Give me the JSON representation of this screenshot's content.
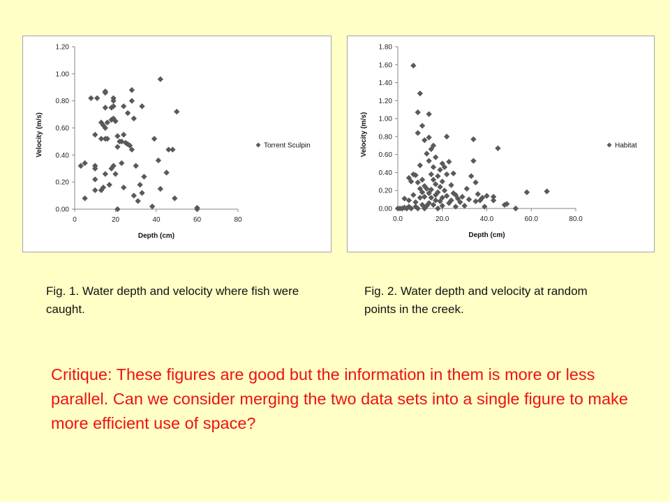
{
  "chart_data": [
    {
      "type": "scatter",
      "xlabel": "Depth (cm)",
      "ylabel": "Velocity (m/s)",
      "xlim": [
        0,
        80
      ],
      "ylim": [
        0,
        1.2
      ],
      "xticks": [
        "0",
        "20",
        "40",
        "60",
        "80"
      ],
      "yticks": [
        "0.00",
        "0.20",
        "0.40",
        "0.60",
        "0.80",
        "1.00",
        "1.20"
      ],
      "grid": false,
      "legend_position": "right",
      "marker_color": "#595959",
      "series": [
        {
          "name": "Torrent Sculpin",
          "points": [
            [
              3,
              0.32
            ],
            [
              5,
              0.34
            ],
            [
              5,
              0.08
            ],
            [
              8,
              0.82
            ],
            [
              10,
              0.55
            ],
            [
              10,
              0.32
            ],
            [
              10,
              0.3
            ],
            [
              10,
              0.22
            ],
            [
              10,
              0.14
            ],
            [
              11,
              0.82
            ],
            [
              13,
              0.64
            ],
            [
              13,
              0.52
            ],
            [
              13,
              0.14
            ],
            [
              14,
              0.16
            ],
            [
              14,
              0.62
            ],
            [
              15,
              0.86
            ],
            [
              15,
              0.87
            ],
            [
              15,
              0.6
            ],
            [
              15,
              0.75
            ],
            [
              15,
              0.52
            ],
            [
              15,
              0.26
            ],
            [
              16,
              0.64
            ],
            [
              16,
              0.52
            ],
            [
              17,
              0.18
            ],
            [
              18,
              0.75
            ],
            [
              18,
              0.3
            ],
            [
              18,
              0.66
            ],
            [
              19,
              0.82
            ],
            [
              19,
              0.67
            ],
            [
              19,
              0.8
            ],
            [
              19,
              0.76
            ],
            [
              19,
              0.32
            ],
            [
              20,
              0.26
            ],
            [
              20,
              0.65
            ],
            [
              21,
              0.54
            ],
            [
              21,
              0.46
            ],
            [
              21,
              0.0
            ],
            [
              22,
              0.5
            ],
            [
              23,
              0.34
            ],
            [
              23,
              0.5
            ],
            [
              24,
              0.55
            ],
            [
              24,
              0.76
            ],
            [
              24,
              0.16
            ],
            [
              25,
              0.49
            ],
            [
              26,
              0.48
            ],
            [
              26,
              0.71
            ],
            [
              27,
              0.47
            ],
            [
              28,
              0.44
            ],
            [
              28,
              0.88
            ],
            [
              28,
              0.8
            ],
            [
              29,
              0.67
            ],
            [
              29,
              0.1
            ],
            [
              30,
              0.32
            ],
            [
              31,
              0.06
            ],
            [
              32,
              0.18
            ],
            [
              33,
              0.12
            ],
            [
              33,
              0.76
            ],
            [
              34,
              0.24
            ],
            [
              38,
              0.02
            ],
            [
              39,
              0.52
            ],
            [
              41,
              0.36
            ],
            [
              42,
              0.96
            ],
            [
              42,
              0.15
            ],
            [
              45,
              0.27
            ],
            [
              46,
              0.44
            ],
            [
              48,
              0.44
            ],
            [
              49,
              0.08
            ],
            [
              50,
              0.72
            ],
            [
              60,
              0.01
            ],
            [
              60,
              0.0
            ]
          ]
        }
      ]
    },
    {
      "type": "scatter",
      "xlabel": "Depth (cm)",
      "ylabel": "Velocity (m/s)",
      "xlim": [
        0,
        80
      ],
      "ylim": [
        0,
        1.8
      ],
      "xticks": [
        "0.0",
        "20.0",
        "40.0",
        "60.0",
        "80.0"
      ],
      "yticks": [
        "0.00",
        "0.20",
        "0.40",
        "0.60",
        "0.80",
        "1.00",
        "1.20",
        "1.40",
        "1.60",
        "1.80"
      ],
      "grid": false,
      "legend_position": "right",
      "marker_color": "#595959",
      "series": [
        {
          "name": "Habitat",
          "points": [
            [
              0,
              0.0
            ],
            [
              1,
              0.0
            ],
            [
              2,
              0.0
            ],
            [
              3,
              0.01
            ],
            [
              3,
              0.11
            ],
            [
              4,
              0.0
            ],
            [
              5,
              0.02
            ],
            [
              5,
              0.09
            ],
            [
              5,
              0.34
            ],
            [
              6,
              0.3
            ],
            [
              6,
              0.0
            ],
            [
              7,
              1.59
            ],
            [
              7,
              0.38
            ],
            [
              7,
              0.15
            ],
            [
              8,
              0.02
            ],
            [
              8,
              0.37
            ],
            [
              8,
              0.07
            ],
            [
              9,
              0.0
            ],
            [
              9,
              1.07
            ],
            [
              9,
              0.84
            ],
            [
              9,
              0.29
            ],
            [
              10,
              1.28
            ],
            [
              10,
              0.48
            ],
            [
              10,
              0.12
            ],
            [
              10,
              0.22
            ],
            [
              11,
              0.92
            ],
            [
              11,
              0.04
            ],
            [
              11,
              0.18
            ],
            [
              11,
              0.32
            ],
            [
              12,
              0.76
            ],
            [
              12,
              0.0
            ],
            [
              12,
              0.13
            ],
            [
              12,
              0.25
            ],
            [
              13,
              0.61
            ],
            [
              13,
              0.22
            ],
            [
              13,
              0.03
            ],
            [
              14,
              1.05
            ],
            [
              14,
              0.79
            ],
            [
              14,
              0.53
            ],
            [
              14,
              0.06
            ],
            [
              14,
              0.17
            ],
            [
              15,
              0.38
            ],
            [
              15,
              0.21
            ],
            [
              15,
              0.66
            ],
            [
              15,
              0.12
            ],
            [
              16,
              0.7
            ],
            [
              16,
              0.46
            ],
            [
              16,
              0.32
            ],
            [
              16,
              0.04
            ],
            [
              17,
              0.57
            ],
            [
              17,
              0.15
            ],
            [
              17,
              0.27
            ],
            [
              17,
              0.09
            ],
            [
              18,
              0.36
            ],
            [
              18,
              0.0
            ],
            [
              18,
              0.18
            ],
            [
              19,
              0.24
            ],
            [
              19,
              0.43
            ],
            [
              19,
              0.08
            ],
            [
              20,
              0.5
            ],
            [
              20,
              0.3
            ],
            [
              20,
              0.12
            ],
            [
              20,
              0.03
            ],
            [
              21,
              0.2
            ],
            [
              21,
              0.46
            ],
            [
              22,
              0.8
            ],
            [
              22,
              0.14
            ],
            [
              22,
              0.38
            ],
            [
              23,
              0.52
            ],
            [
              23,
              0.06
            ],
            [
              24,
              0.26
            ],
            [
              24,
              0.09
            ],
            [
              25,
              0.39
            ],
            [
              25,
              0.17
            ],
            [
              26,
              0.02
            ],
            [
              26,
              0.15
            ],
            [
              27,
              0.11
            ],
            [
              28,
              0.07
            ],
            [
              29,
              0.13
            ],
            [
              30,
              0.03
            ],
            [
              31,
              0.22
            ],
            [
              32,
              0.1
            ],
            [
              33,
              0.36
            ],
            [
              34,
              0.77
            ],
            [
              34,
              0.53
            ],
            [
              35,
              0.08
            ],
            [
              35,
              0.29
            ],
            [
              36,
              0.16
            ],
            [
              37,
              0.09
            ],
            [
              38,
              0.12
            ],
            [
              39,
              0.02
            ],
            [
              40,
              0.14
            ],
            [
              43,
              0.09
            ],
            [
              43,
              0.13
            ],
            [
              45,
              0.67
            ],
            [
              48,
              0.04
            ],
            [
              49,
              0.05
            ],
            [
              53,
              0.0
            ],
            [
              58,
              0.18
            ],
            [
              67,
              0.19
            ]
          ]
        }
      ]
    }
  ],
  "captions": {
    "fig1": "Fig. 1. Water depth and velocity where fish were caught.",
    "fig2": "Fig. 2. Water depth and velocity at random points in the creek."
  },
  "critique": "Critique:  These figures are good but the information in them is more or less parallel.  Can we consider merging the two data sets into a single figure to make more efficient use of space?"
}
